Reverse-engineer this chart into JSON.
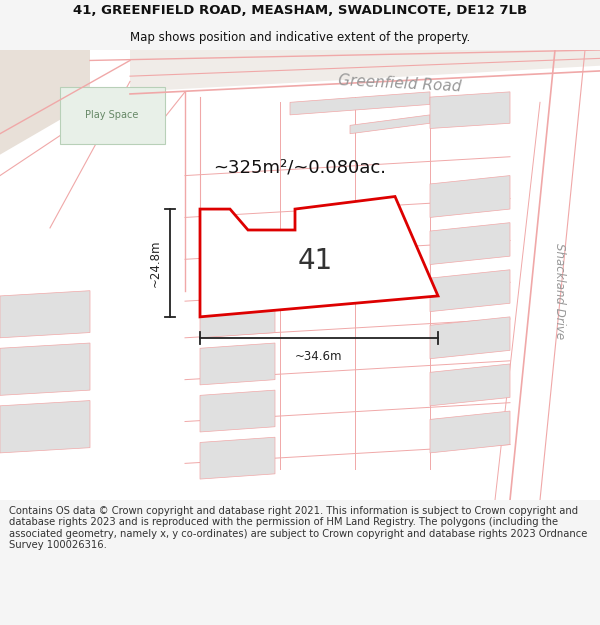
{
  "title_line1": "41, GREENFIELD ROAD, MEASHAM, SWADLINCOTE, DE12 7LB",
  "title_line2": "Map shows position and indicative extent of the property.",
  "area_text": "~325m²/~0.080ac.",
  "label_41": "41",
  "dim_vertical": "~24.8m",
  "dim_horizontal": "~34.6m",
  "road_label": "Greenfield Road",
  "side_label": "Shackland Drive",
  "play_space_label": "Play Space",
  "footer": "Contains OS data © Crown copyright and database right 2021. This information is subject to Crown copyright and database rights 2023 and is reproduced with the permission of HM Land Registry. The polygons (including the associated geometry, namely x, y co-ordinates) are subject to Crown copyright and database rights 2023 Ordnance Survey 100026316.",
  "bg_color": "#f5f5f5",
  "map_bg": "#ffffff",
  "line_color": "#f0a8a8",
  "plot_outline_color": "#dd0000",
  "block_color": "#e0e0e0",
  "green_color": "#e8f0e8",
  "title_fontsize": 9.5,
  "subtitle_fontsize": 8.5,
  "footer_fontsize": 7.2
}
